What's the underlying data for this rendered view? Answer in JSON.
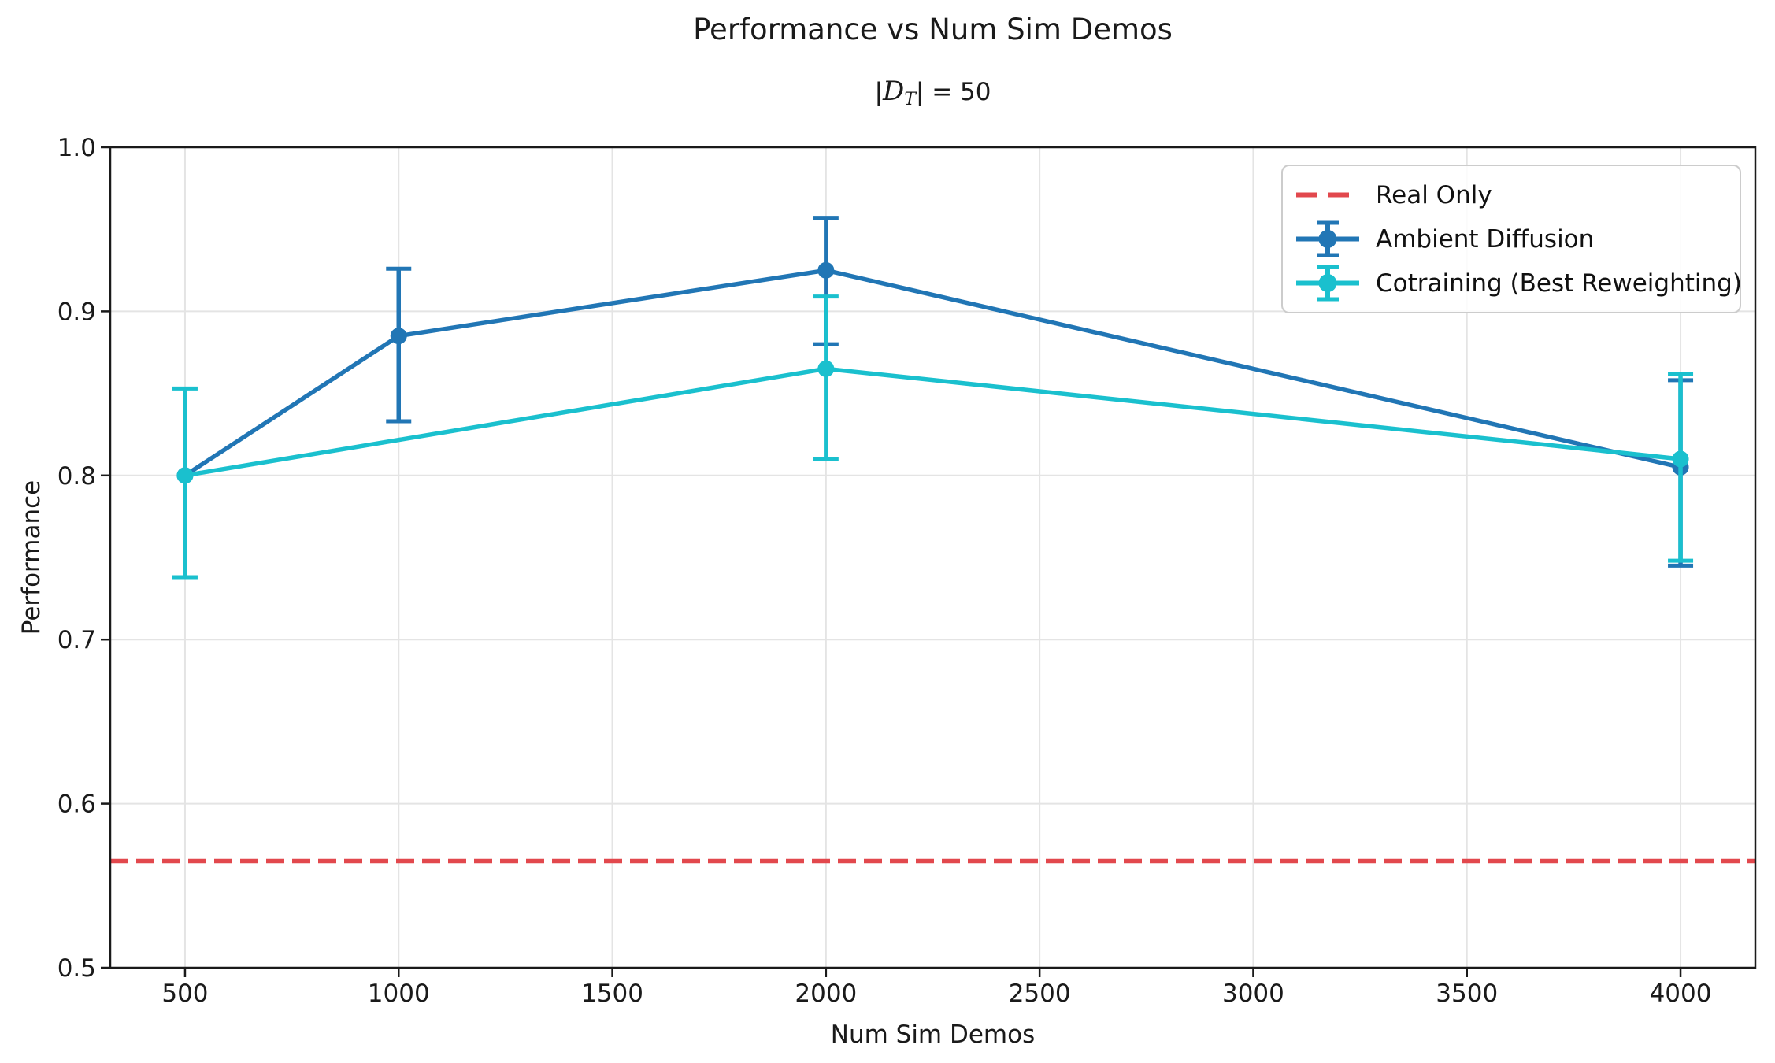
{
  "chart_data": {
    "type": "line",
    "title": "Performance vs Num Sim Demos",
    "subtitle": "|D_T| = 50",
    "subtitle_parts": {
      "pre": "|",
      "symbol": "D",
      "sub": "T",
      "post": "| = 50"
    },
    "xlabel": "Num Sim Demos",
    "ylabel": "Performance",
    "xlim": [
      325,
      4175
    ],
    "ylim": [
      0.5,
      1.0
    ],
    "xticks": [
      500,
      1000,
      1500,
      2000,
      2500,
      3000,
      3500,
      4000
    ],
    "yticks": [
      0.5,
      0.6,
      0.7,
      0.8,
      0.9,
      1.0
    ],
    "grid": true,
    "legend_position": "upper right",
    "baseline": {
      "label": "Real Only",
      "value": 0.565,
      "color": "#e2484d",
      "linestyle": "dashed"
    },
    "series": [
      {
        "name": "Ambient Diffusion",
        "color": "#2176b5",
        "marker": "circle",
        "x": [
          500,
          1000,
          2000,
          4000
        ],
        "y": [
          0.8,
          0.885,
          0.925,
          0.805
        ],
        "err_low": [
          null,
          0.833,
          0.88,
          0.745
        ],
        "err_high": [
          null,
          0.926,
          0.957,
          0.858
        ]
      },
      {
        "name": "Cotraining (Best Reweighting)",
        "color": "#1ac0ce",
        "marker": "circle",
        "x": [
          500,
          2000,
          4000
        ],
        "y": [
          0.8,
          0.865,
          0.81
        ],
        "err_low": [
          0.738,
          0.81,
          0.748
        ],
        "err_high": [
          0.853,
          0.909,
          0.862
        ]
      }
    ]
  },
  "styles": {
    "grid_color": "#e4e4e4",
    "spine_color": "#1a1a1a",
    "tick_color": "#1a1a1a",
    "text_color": "#1a1a1a",
    "legend_border": "#cccccc",
    "legend_bg": "#ffffff"
  }
}
